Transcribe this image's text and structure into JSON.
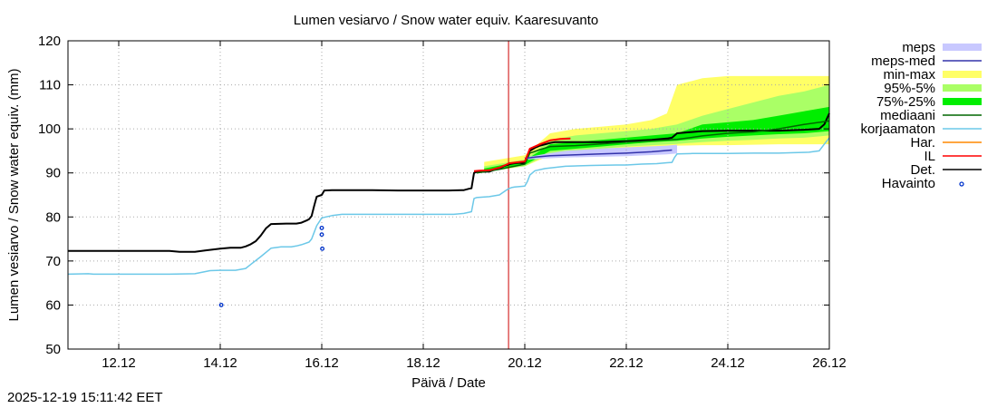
{
  "chart_data": {
    "type": "line",
    "title": "Lumen vesiarvo / Snow water equiv.  Kaaresuvanto",
    "xlabel": "Päivä / Date",
    "ylabel": "Lumen vesiarvo / Snow water equiv. (mm)",
    "ylim": [
      50,
      120
    ],
    "xlim": [
      11.0,
      26.0
    ],
    "y_ticks": [
      50,
      60,
      70,
      80,
      90,
      100,
      110,
      120
    ],
    "x_ticks": [
      {
        "x": 12,
        "label": "12.12"
      },
      {
        "x": 14,
        "label": "14.12"
      },
      {
        "x": 16,
        "label": "16.12"
      },
      {
        "x": 18,
        "label": "18.12"
      },
      {
        "x": 20,
        "label": "20.12"
      },
      {
        "x": 22,
        "label": "22.12"
      },
      {
        "x": 24,
        "label": "24.12"
      },
      {
        "x": 26,
        "label": "26.12"
      }
    ],
    "grid": true,
    "legend_position": "right",
    "now_line_x": 19.68,
    "bands": [
      {
        "name": "min-max",
        "color": "#ffff66",
        "x": [
          19.2,
          20.0,
          20.5,
          21.0,
          21.5,
          22.0,
          22.5,
          22.8,
          23.0,
          23.5,
          24.0,
          24.5,
          25.0,
          25.5,
          26.0
        ],
        "upper": [
          92.5,
          94.0,
          99.0,
          100.0,
          100.5,
          101.0,
          102.0,
          103.5,
          110.0,
          111.5,
          112.0,
          112.0,
          112.0,
          112.0,
          112.0
        ],
        "lower": [
          90.2,
          91.5,
          94.0,
          94.5,
          95.0,
          95.3,
          95.8,
          96.0,
          96.2,
          96.3,
          96.3,
          96.4,
          96.5,
          96.5,
          96.5
        ]
      },
      {
        "name": "95%-5%",
        "color": "#aaff66",
        "x": [
          19.2,
          20.0,
          20.5,
          21.0,
          21.5,
          22.0,
          22.5,
          23.0,
          23.5,
          24.0,
          24.5,
          25.0,
          25.5,
          26.0
        ],
        "upper": [
          91.5,
          93.0,
          97.5,
          98.5,
          99.0,
          99.5,
          100.0,
          101.0,
          103.0,
          104.5,
          106.0,
          107.5,
          108.5,
          110.0
        ],
        "lower": [
          90.4,
          91.5,
          94.5,
          95.0,
          95.5,
          96.0,
          96.3,
          96.6,
          97.0,
          97.3,
          97.5,
          97.8,
          98.0,
          98.5
        ]
      },
      {
        "name": "75%-25%",
        "color": "#00ee00",
        "x": [
          19.2,
          20.0,
          20.5,
          21.0,
          21.5,
          22.0,
          22.5,
          23.0,
          23.5,
          24.0,
          24.5,
          25.0,
          25.5,
          26.0
        ],
        "upper": [
          91.0,
          92.8,
          96.5,
          97.0,
          97.5,
          98.0,
          98.5,
          99.0,
          101.0,
          101.5,
          102.0,
          103.0,
          104.0,
          105.0
        ],
        "lower": [
          90.5,
          91.8,
          95.0,
          95.5,
          96.0,
          96.5,
          97.0,
          97.3,
          97.8,
          98.2,
          98.5,
          98.8,
          99.0,
          99.5
        ]
      },
      {
        "name": "meps",
        "color": "#c8c8ff",
        "x": [
          20.0,
          20.4,
          20.8,
          21.2,
          21.6,
          22.0,
          22.4,
          22.8,
          23.0
        ],
        "upper": [
          93.5,
          94.3,
          95.0,
          95.3,
          95.6,
          95.8,
          96.0,
          96.2,
          96.4
        ],
        "lower": [
          93.0,
          93.3,
          93.5,
          93.6,
          93.7,
          93.8,
          94.0,
          94.2,
          94.4
        ]
      }
    ],
    "series": [
      {
        "name": "korjaamaton",
        "color": "#6cc8e8",
        "width": 1.5,
        "x": [
          11.0,
          11.4,
          11.5,
          13.0,
          13.5,
          13.8,
          14.0,
          14.3,
          14.5,
          14.6,
          14.8,
          15.0,
          15.2,
          15.4,
          15.5,
          15.6,
          15.75,
          15.8,
          15.85,
          15.9,
          16.0,
          16.2,
          16.4,
          17.0,
          17.5,
          18.0,
          18.3,
          18.6,
          18.8,
          18.95,
          19.0,
          19.05,
          19.3,
          19.5,
          19.6,
          19.65,
          19.7,
          19.75,
          19.8,
          19.9,
          20.0,
          20.05,
          20.1,
          20.2,
          20.4,
          20.8,
          21.3,
          21.8,
          22.0,
          22.3,
          22.6,
          22.8,
          22.9,
          22.95,
          23.0,
          23.3,
          23.6,
          24.0,
          24.5,
          25.0,
          25.3,
          25.6,
          25.8,
          25.9,
          26.0
        ],
        "y": [
          67.0,
          67.1,
          67.0,
          67.0,
          67.1,
          67.8,
          67.9,
          67.9,
          68.3,
          69.2,
          71.0,
          72.9,
          73.2,
          73.2,
          73.4,
          73.7,
          74.3,
          75.0,
          76.5,
          78.0,
          79.8,
          80.3,
          80.6,
          80.6,
          80.6,
          80.6,
          80.6,
          80.6,
          80.8,
          81.2,
          84.2,
          84.4,
          84.6,
          85.0,
          85.8,
          86.2,
          86.5,
          86.7,
          86.8,
          86.9,
          87.0,
          88.0,
          89.5,
          90.5,
          91.0,
          91.5,
          91.7,
          91.8,
          91.8,
          92.0,
          92.1,
          92.3,
          92.4,
          93.5,
          94.3,
          94.4,
          94.4,
          94.4,
          94.5,
          94.5,
          94.6,
          94.7,
          95.0,
          96.5,
          98.0
        ]
      },
      {
        "name": "Det.",
        "color": "#000000",
        "width": 2,
        "x": [
          11.0,
          12.5,
          13.0,
          13.2,
          13.5,
          13.7,
          14.0,
          14.2,
          14.4,
          14.5,
          14.6,
          14.7,
          14.8,
          14.9,
          15.0,
          15.3,
          15.5,
          15.6,
          15.7,
          15.75,
          15.8,
          15.85,
          15.9,
          16.0,
          16.05,
          16.2,
          16.5,
          17.0,
          17.5,
          18.0,
          18.5,
          18.8,
          18.9,
          18.95,
          19.0,
          19.05,
          19.3,
          19.4,
          19.5,
          19.6,
          19.7,
          19.8,
          19.9,
          19.95,
          20.0,
          20.05,
          20.1,
          20.2,
          20.3,
          20.5,
          20.6,
          21.0,
          21.5,
          22.0,
          22.5,
          22.7,
          22.8,
          22.9,
          23.0,
          23.5,
          24.0,
          24.5,
          25.0,
          25.5,
          25.8,
          25.9,
          26.0
        ],
        "y": [
          72.3,
          72.3,
          72.3,
          72.1,
          72.1,
          72.4,
          72.8,
          73.0,
          73.0,
          73.3,
          73.8,
          74.5,
          75.8,
          77.4,
          78.4,
          78.5,
          78.5,
          78.7,
          79.2,
          79.5,
          80.2,
          82.5,
          84.6,
          85.0,
          86.0,
          86.1,
          86.1,
          86.1,
          86.0,
          86.0,
          86.0,
          86.1,
          86.4,
          86.5,
          90.0,
          90.2,
          90.3,
          90.7,
          91.0,
          91.6,
          92.0,
          92.2,
          92.3,
          92.2,
          92.2,
          93.5,
          95.0,
          95.7,
          96.2,
          96.8,
          97.0,
          97.0,
          97.0,
          97.2,
          97.5,
          97.7,
          97.8,
          98.0,
          99.0,
          99.5,
          99.6,
          99.6,
          99.6,
          99.8,
          100.0,
          101.0,
          103.5
        ]
      },
      {
        "name": "mediaani",
        "color": "#006600",
        "width": 1.5,
        "x": [
          19.05,
          19.5,
          20.0,
          20.1,
          20.3,
          20.5,
          21.0,
          21.5,
          22.0,
          22.5,
          23.0,
          23.5,
          24.0,
          24.5,
          25.0,
          25.5,
          26.0
        ],
        "y": [
          90.0,
          90.8,
          92.0,
          94.5,
          95.3,
          96.0,
          96.2,
          96.6,
          97.0,
          97.3,
          97.6,
          98.4,
          99.0,
          99.3,
          100.0,
          101.0,
          101.8
        ]
      },
      {
        "name": "meps-med",
        "color": "#3333aa",
        "width": 1.5,
        "x": [
          20.0,
          20.2,
          20.5,
          21.0,
          21.5,
          22.0,
          22.5,
          22.9
        ],
        "y": [
          93.3,
          93.6,
          93.9,
          94.1,
          94.3,
          94.5,
          94.8,
          95.2
        ]
      },
      {
        "name": "IL",
        "color": "#ff0000",
        "width": 2,
        "x": [
          19.0,
          19.1,
          19.3,
          19.5,
          19.7,
          19.9,
          20.0,
          20.05,
          20.1,
          20.3,
          20.5,
          20.7,
          20.9
        ],
        "y": [
          90.4,
          90.5,
          90.6,
          91.2,
          92.2,
          92.5,
          92.6,
          94.0,
          95.5,
          96.5,
          97.4,
          97.7,
          97.8
        ]
      }
    ],
    "observations": {
      "name": "Havainto",
      "color": "#0033cc",
      "x": [
        14.02,
        16.0,
        16.0,
        16.01
      ],
      "y": [
        60.0,
        77.5,
        76.0,
        72.8
      ]
    },
    "legend": [
      {
        "label": "meps",
        "kind": "box",
        "color": "#c8c8ff"
      },
      {
        "label": "meps-med",
        "kind": "line",
        "color": "#3333aa"
      },
      {
        "label": "min-max",
        "kind": "box",
        "color": "#ffff66"
      },
      {
        "label": "95%-5%",
        "kind": "box",
        "color": "#aaff66"
      },
      {
        "label": "75%-25%",
        "kind": "box",
        "color": "#00ee00"
      },
      {
        "label": "mediaani",
        "kind": "line",
        "color": "#006600"
      },
      {
        "label": "korjaamaton",
        "kind": "line",
        "color": "#6cc8e8"
      },
      {
        "label": "Har.",
        "kind": "line",
        "color": "#ff8800"
      },
      {
        "label": "IL",
        "kind": "line",
        "color": "#ff0000"
      },
      {
        "label": "Det.",
        "kind": "line",
        "color": "#000000"
      },
      {
        "label": "Havainto",
        "kind": "point",
        "color": "#0033cc"
      }
    ]
  },
  "timestamp": "2025-12-19 15:11:42 EET"
}
